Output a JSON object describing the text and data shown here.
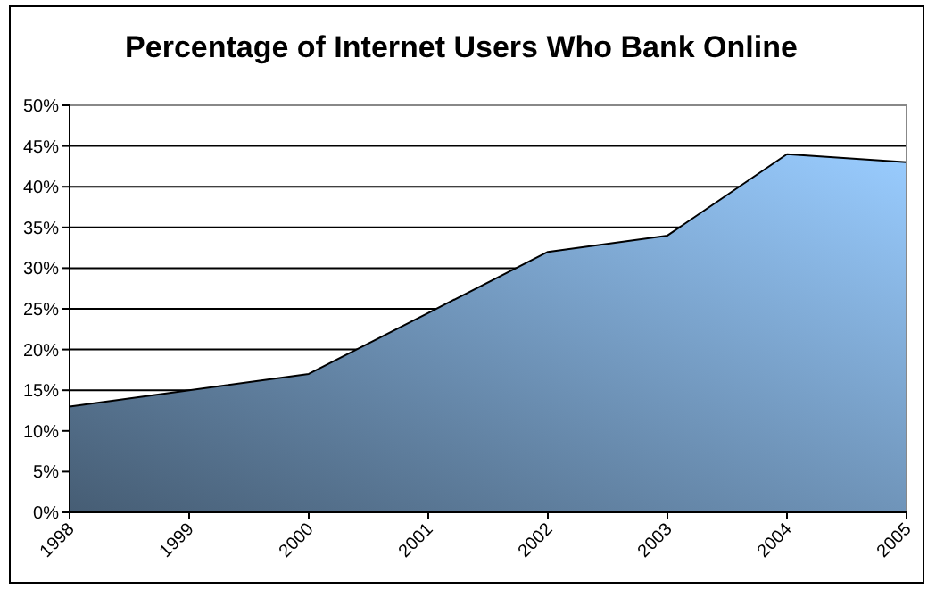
{
  "chart_data": {
    "type": "area",
    "title": "Percentage of Internet Users Who Bank Online",
    "categories": [
      "1998",
      "1999",
      "2000",
      "2001",
      "2002",
      "2003",
      "2004",
      "2005"
    ],
    "series": [
      {
        "color": "#99ccff",
        "values": [
          13,
          15,
          17,
          24.5,
          32,
          34,
          44,
          43
        ]
      }
    ],
    "ylim": [
      0,
      50
    ],
    "yticks": [
      {
        "value": 0,
        "label": "0%"
      },
      {
        "value": 5,
        "label": "5%"
      },
      {
        "value": 10,
        "label": "10%"
      },
      {
        "value": 15,
        "label": "15%"
      },
      {
        "value": 20,
        "label": "20%"
      },
      {
        "value": 25,
        "label": "25%"
      },
      {
        "value": 30,
        "label": "30%"
      },
      {
        "value": 35,
        "label": "35%"
      },
      {
        "value": 40,
        "label": "40%"
      },
      {
        "value": 45,
        "label": "45%"
      },
      {
        "value": 50,
        "label": "50%"
      }
    ],
    "grid": "y"
  }
}
